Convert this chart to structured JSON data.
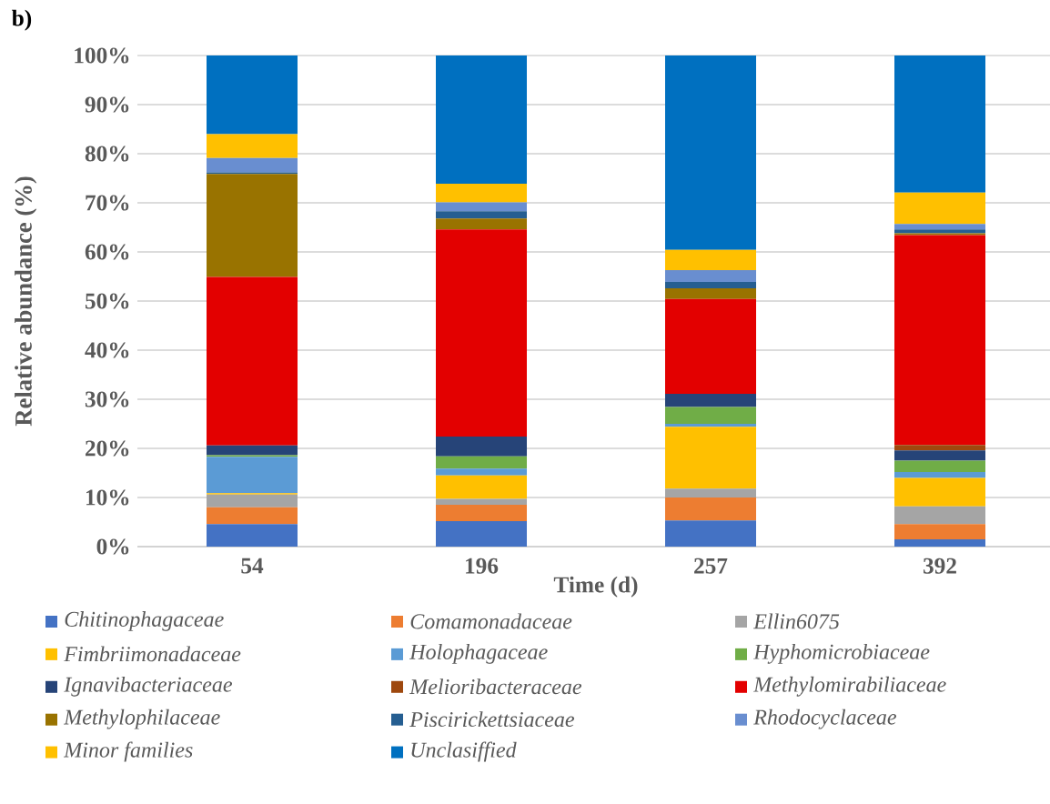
{
  "chart_data": {
    "type": "bar",
    "stacked": true,
    "title": "b)",
    "xlabel": "Time (d)",
    "ylabel": "Relative abundance (%)",
    "categories": [
      "54",
      "196",
      "257",
      "392"
    ],
    "ylim": [
      0,
      100
    ],
    "yticks": [
      {
        "value": 0,
        "label": "0%"
      },
      {
        "value": 10,
        "label": "10%"
      },
      {
        "value": 20,
        "label": "20%"
      },
      {
        "value": 30,
        "label": "30%"
      },
      {
        "value": 40,
        "label": "40%"
      },
      {
        "value": 50,
        "label": "50%"
      },
      {
        "value": 60,
        "label": "60%"
      },
      {
        "value": 70,
        "label": "70%"
      },
      {
        "value": 80,
        "label": "80%"
      },
      {
        "value": 90,
        "label": "90%"
      },
      {
        "value": 100,
        "label": "100%"
      }
    ],
    "grid": "y",
    "legend": "bottom",
    "series": [
      {
        "name": "Chitinophagaceae",
        "color": "#4472c4",
        "values": [
          4.6,
          5.2,
          5.3,
          1.5
        ]
      },
      {
        "name": "Comamonadaceae",
        "color": "#ed7d31",
        "values": [
          3.4,
          3.3,
          4.7,
          3.1
        ]
      },
      {
        "name": "Ellin6075",
        "color": "#a5a5a5",
        "values": [
          2.6,
          1.2,
          1.8,
          3.6
        ]
      },
      {
        "name": "Fimbriimonadaceae",
        "color": "#ffc000",
        "values": [
          0.3,
          4.8,
          12.6,
          5.8
        ]
      },
      {
        "name": "Holophagaceae",
        "color": "#5b9bd5",
        "values": [
          7.4,
          1.4,
          0.6,
          1.2
        ]
      },
      {
        "name": "Hyphomicrobiaceae",
        "color": "#70ad47",
        "values": [
          0.3,
          2.5,
          3.4,
          2.3
        ]
      },
      {
        "name": "Ignavibacteriaceae",
        "color": "#264478",
        "values": [
          2.0,
          4.0,
          2.7,
          2.1
        ]
      },
      {
        "name": "Melioribacteraceae",
        "color": "#9e480e",
        "values": [
          0,
          0,
          0,
          1.1
        ]
      },
      {
        "name": "Methylomirabiliaceae",
        "color": "#e30000",
        "values": [
          34.3,
          42.2,
          19.3,
          42.7
        ]
      },
      {
        "name": "Methylophilaceae",
        "color": "#997300",
        "values": [
          21.0,
          2.2,
          2.2,
          0.4
        ]
      },
      {
        "name": "Piscirickettsiaceae",
        "color": "#255e91",
        "values": [
          0.3,
          1.5,
          1.3,
          0.8
        ]
      },
      {
        "name": "Rhodocyclaceae",
        "color": "#698ed0",
        "values": [
          2.9,
          1.8,
          2.4,
          1.1
        ]
      },
      {
        "name": "Minor families",
        "color": "#ffc000",
        "values": [
          4.9,
          3.8,
          4.1,
          6.4
        ]
      },
      {
        "name": "Unclasiffied",
        "color": "#0070c0",
        "values": [
          16.0,
          26.1,
          39.6,
          27.9
        ]
      }
    ]
  }
}
